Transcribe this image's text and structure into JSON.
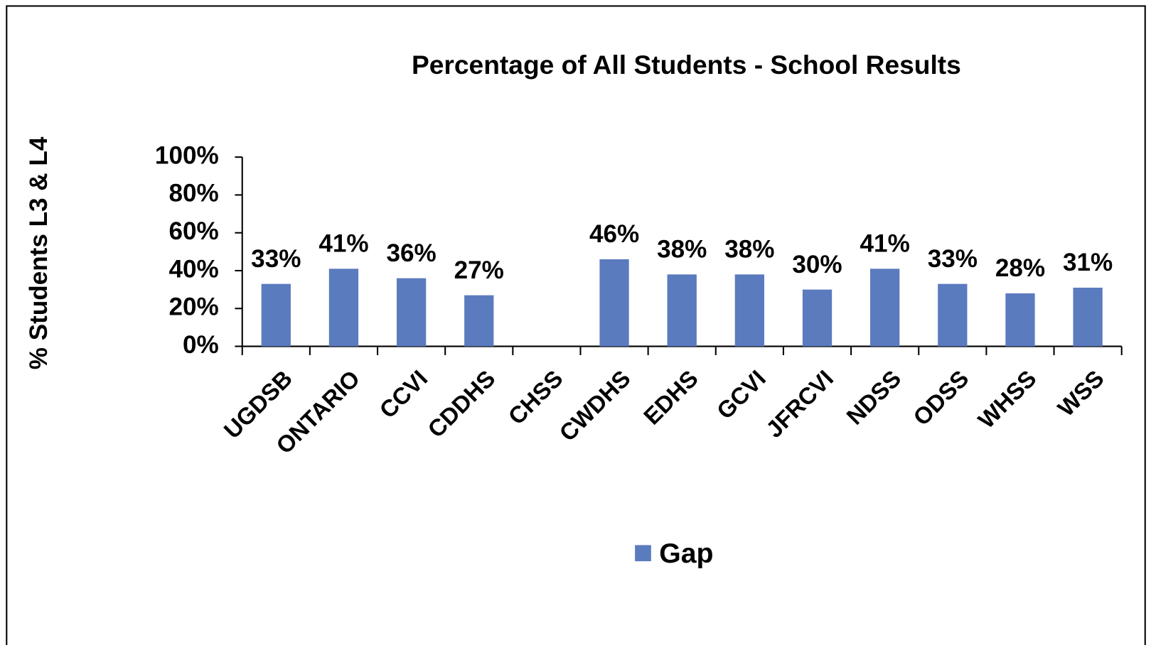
{
  "chart_data": {
    "type": "bar",
    "title": "Percentage of All Students - School Results",
    "y_label": "% Students L3 & L4",
    "categories": [
      "UGDSB",
      "ONTARIO",
      "CCVI",
      "CDDHS",
      "CHSS",
      "CWDHS",
      "EDHS",
      "GCVI",
      "JFRCVI",
      "NDSS",
      "ODSS",
      "WHSS",
      "WSS"
    ],
    "series": [
      {
        "name": "Gap",
        "color": "#5b7bbf",
        "values": [
          33,
          41,
          36,
          27,
          null,
          46,
          38,
          38,
          30,
          41,
          33,
          28,
          31
        ],
        "value_labels": [
          "33%",
          "41%",
          "36%",
          "27%",
          null,
          "46%",
          "38%",
          "38%",
          "30%",
          "41%",
          "33%",
          "28%",
          "31%"
        ]
      }
    ],
    "ylim": [
      0,
      100
    ],
    "yticks": [
      {
        "value": 0,
        "label": "0%"
      },
      {
        "value": 20,
        "label": "20%"
      },
      {
        "value": 40,
        "label": "40%"
      },
      {
        "value": 60,
        "label": "60%"
      },
      {
        "value": 80,
        "label": "80%"
      },
      {
        "value": 100,
        "label": "100%"
      }
    ],
    "legend": "bottom"
  }
}
